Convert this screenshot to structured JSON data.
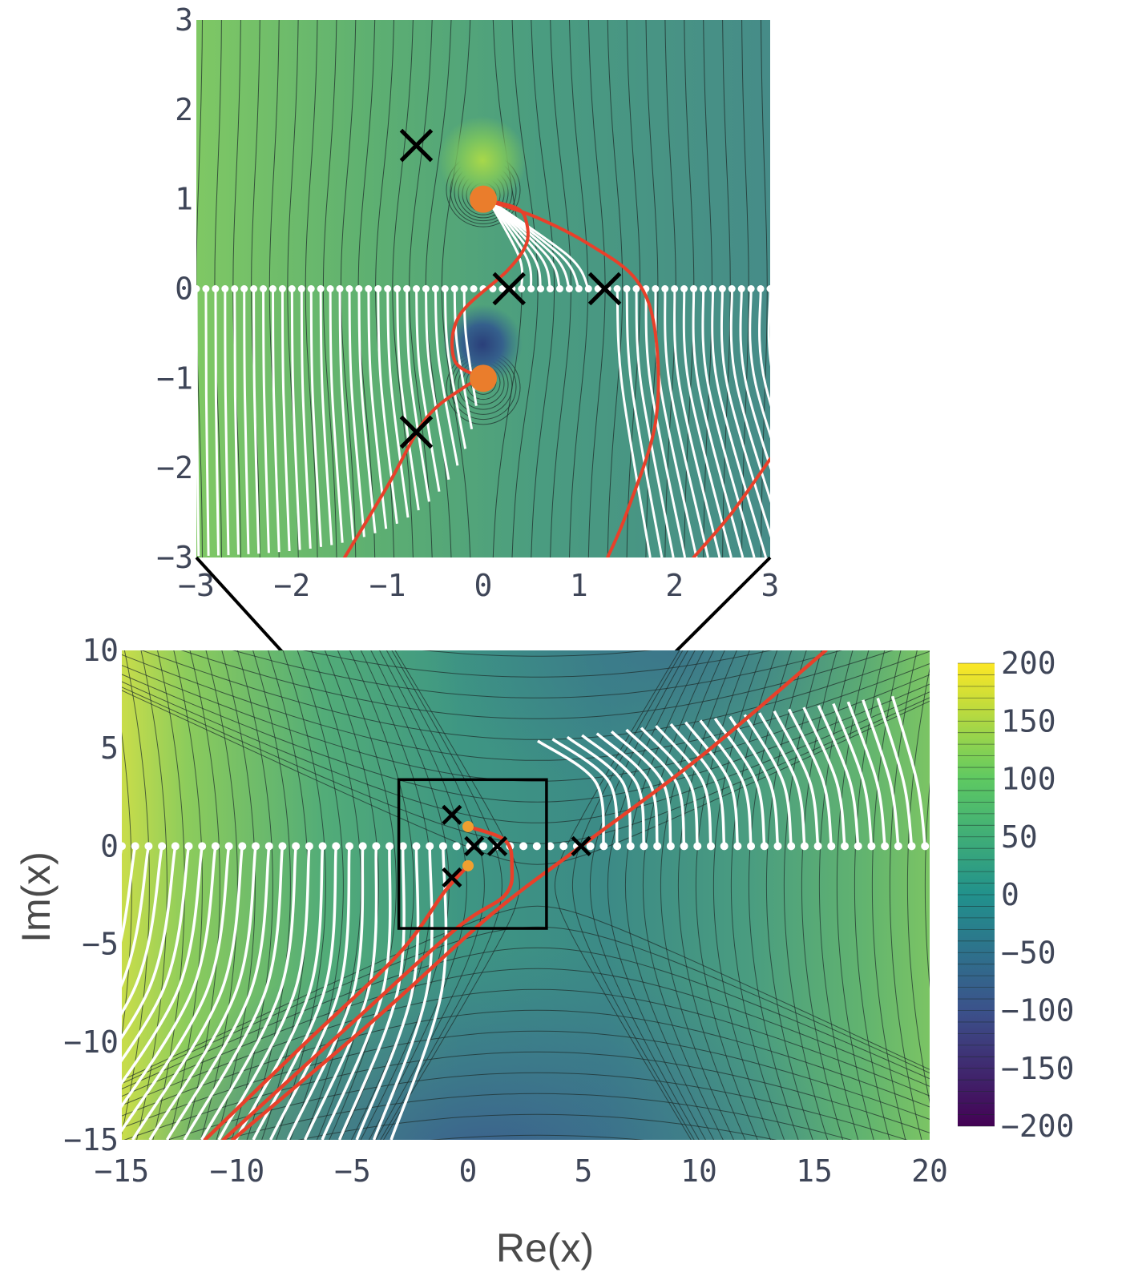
{
  "chart_data": [
    {
      "type": "heatmap",
      "panel": "inset",
      "title": "",
      "xlabel": "",
      "ylabel": "",
      "xlim": [
        -3,
        3
      ],
      "ylim": [
        -3,
        3
      ],
      "xticks": [
        -3,
        -2,
        -1,
        0,
        1,
        2,
        3
      ],
      "yticks": [
        -3,
        -2,
        -1,
        0,
        1,
        2,
        3
      ],
      "xtick_labels": [
        "−3",
        "−2",
        "−1",
        "0",
        "1",
        "2",
        "3"
      ],
      "ytick_labels": [
        "−3",
        "−2",
        "−1",
        "0",
        "1",
        "2",
        "3"
      ],
      "poles": [
        {
          "x": 0.0,
          "y": 1.0
        },
        {
          "x": 0.0,
          "y": -1.0
        }
      ],
      "saddle_points": [
        {
          "x": -0.7,
          "y": 1.6
        },
        {
          "x": 0.27,
          "y": 0.0
        },
        {
          "x": 1.27,
          "y": 0.0
        },
        {
          "x": -0.7,
          "y": -1.6
        }
      ],
      "red_curves": [
        [
          [
            -1.45,
            -3.0
          ],
          [
            -1.0,
            -2.2
          ],
          [
            -0.6,
            -1.45
          ],
          [
            -0.2,
            -1.1
          ],
          [
            0.0,
            -1.0
          ]
        ],
        [
          [
            0.0,
            -1.0
          ],
          [
            -0.3,
            -0.8
          ],
          [
            -0.25,
            -0.3
          ],
          [
            0.25,
            0.2
          ],
          [
            0.45,
            0.5
          ],
          [
            0.45,
            0.75
          ],
          [
            0.35,
            0.9
          ],
          [
            0.0,
            1.0
          ]
        ],
        [
          [
            0.0,
            1.0
          ],
          [
            0.55,
            0.8
          ],
          [
            1.1,
            0.5
          ],
          [
            1.6,
            0.1
          ],
          [
            1.8,
            -0.5
          ],
          [
            1.8,
            -1.5
          ],
          [
            1.5,
            -2.5
          ],
          [
            1.3,
            -3.0
          ]
        ],
        [
          [
            2.2,
            -3.0
          ],
          [
            2.6,
            -2.5
          ],
          [
            3.0,
            -1.9
          ]
        ]
      ],
      "real_axis_samples": true
    },
    {
      "type": "heatmap",
      "panel": "main",
      "title": "",
      "xlabel": "Re(x)",
      "ylabel": "Im(x)",
      "xlim": [
        -15,
        20
      ],
      "ylim": [
        -15,
        10
      ],
      "xticks": [
        -15,
        -10,
        -5,
        0,
        5,
        10,
        15,
        20
      ],
      "yticks": [
        -15,
        -10,
        -5,
        0,
        5,
        10
      ],
      "xtick_labels": [
        "−15",
        "−10",
        "−5",
        "0",
        "5",
        "10",
        "15",
        "20"
      ],
      "ytick_labels": [
        "−15",
        "−10",
        "−5",
        "0",
        "5",
        "10"
      ],
      "zoom_box": {
        "xmin": -3,
        "xmax": 3.4,
        "ymin": -4.2,
        "ymax": 3.4
      },
      "poles": [
        {
          "x": 0.0,
          "y": 1.0
        },
        {
          "x": 0.0,
          "y": -1.0
        }
      ],
      "saddle_points": [
        {
          "x": -0.7,
          "y": 1.6
        },
        {
          "x": 0.27,
          "y": 0.0
        },
        {
          "x": 1.27,
          "y": 0.0
        },
        {
          "x": -0.7,
          "y": -1.6
        },
        {
          "x": 4.9,
          "y": 0.0
        }
      ],
      "red_curves": [
        [
          [
            -11.4,
            -15.0
          ],
          [
            -7.0,
            -10.0
          ],
          [
            -3.0,
            -5.5
          ],
          [
            -1.0,
            -2.3
          ],
          [
            0.0,
            -1.0
          ]
        ],
        [
          [
            -10.6,
            -15.0
          ],
          [
            -5.0,
            -9.0
          ],
          [
            -0.5,
            -4.2
          ],
          [
            1.6,
            -2.5
          ],
          [
            1.9,
            -1.0
          ],
          [
            1.6,
            0.3
          ],
          [
            0.0,
            1.0
          ]
        ],
        [
          [
            -10.2,
            -15.0
          ],
          [
            -4.0,
            -8.8
          ],
          [
            1.0,
            -3.5
          ],
          [
            4.9,
            0.0
          ],
          [
            10.0,
            4.5
          ],
          [
            15.5,
            10.0
          ]
        ]
      ],
      "real_axis_samples": true
    }
  ],
  "colorbar": {
    "range": [
      -200,
      200
    ],
    "ticks": [
      -200,
      -150,
      -100,
      -50,
      0,
      50,
      100,
      150,
      200
    ],
    "tick_labels": [
      "−200",
      "−150",
      "−100",
      "−50",
      "0",
      "50",
      "100",
      "150",
      "200"
    ],
    "colors": [
      "#440154",
      "#3b528b",
      "#21918c",
      "#5ec962",
      "#fde725"
    ]
  }
}
